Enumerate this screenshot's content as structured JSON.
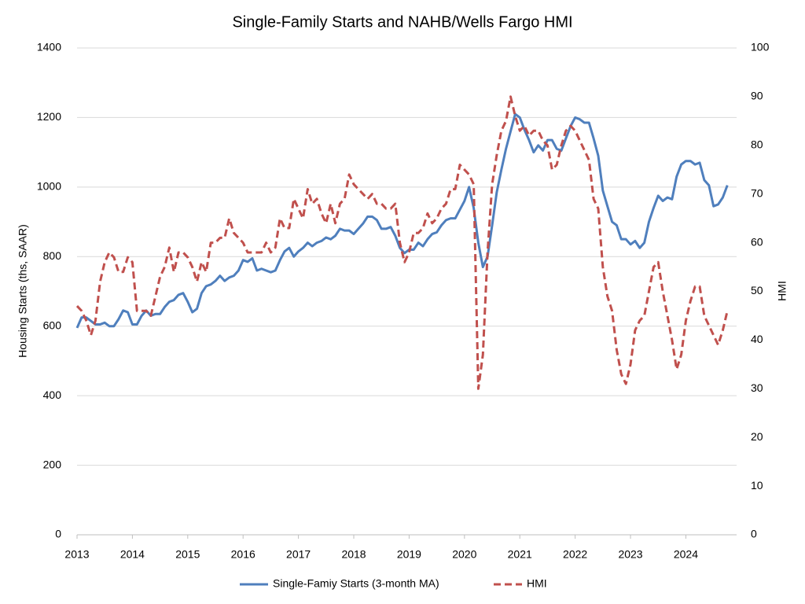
{
  "chart_data": {
    "type": "line",
    "title": "Single-Family Starts and NAHB/Wells Fargo HMI",
    "ylabel": "Housing Starts (ths, SAAR)",
    "y2label": "HMI",
    "x": [
      2013,
      2013.083,
      2013.167,
      2013.25,
      2013.333,
      2013.417,
      2013.5,
      2013.583,
      2013.667,
      2013.75,
      2013.833,
      2013.917,
      2014,
      2014.083,
      2014.167,
      2014.25,
      2014.333,
      2014.417,
      2014.5,
      2014.583,
      2014.667,
      2014.75,
      2014.833,
      2014.917,
      2015,
      2015.083,
      2015.167,
      2015.25,
      2015.333,
      2015.417,
      2015.5,
      2015.583,
      2015.667,
      2015.75,
      2015.833,
      2015.917,
      2016,
      2016.083,
      2016.167,
      2016.25,
      2016.333,
      2016.417,
      2016.5,
      2016.583,
      2016.667,
      2016.75,
      2016.833,
      2016.917,
      2017,
      2017.083,
      2017.167,
      2017.25,
      2017.333,
      2017.417,
      2017.5,
      2017.583,
      2017.667,
      2017.75,
      2017.833,
      2017.917,
      2018,
      2018.083,
      2018.167,
      2018.25,
      2018.333,
      2018.417,
      2018.5,
      2018.583,
      2018.667,
      2018.75,
      2018.833,
      2018.917,
      2019,
      2019.083,
      2019.167,
      2019.25,
      2019.333,
      2019.417,
      2019.5,
      2019.583,
      2019.667,
      2019.75,
      2019.833,
      2019.917,
      2020,
      2020.083,
      2020.167,
      2020.25,
      2020.333,
      2020.417,
      2020.5,
      2020.583,
      2020.667,
      2020.75,
      2020.833,
      2020.917,
      2021,
      2021.083,
      2021.167,
      2021.25,
      2021.333,
      2021.417,
      2021.5,
      2021.583,
      2021.667,
      2021.75,
      2021.833,
      2021.917,
      2022,
      2022.083,
      2022.167,
      2022.25,
      2022.333,
      2022.417,
      2022.5,
      2022.583,
      2022.667,
      2022.75,
      2022.833,
      2022.917,
      2023,
      2023.083,
      2023.167,
      2023.25,
      2023.333,
      2023.417,
      2023.5,
      2023.583,
      2023.667,
      2023.75,
      2023.833,
      2023.917,
      2024,
      2024.083,
      2024.167,
      2024.25,
      2024.333,
      2024.417,
      2024.5,
      2024.583,
      2024.667,
      2024.75
    ],
    "series": [
      {
        "name": "Single-Famiy Starts (3-month MA)",
        "color": "#4f7fbd",
        "dash": "solid",
        "axis": "y",
        "values": [
          595,
          625,
          625,
          615,
          605,
          605,
          610,
          600,
          600,
          620,
          645,
          640,
          605,
          605,
          630,
          645,
          630,
          635,
          635,
          655,
          670,
          675,
          690,
          695,
          670,
          640,
          650,
          695,
          715,
          720,
          730,
          745,
          730,
          740,
          745,
          760,
          790,
          785,
          795,
          760,
          765,
          760,
          755,
          760,
          790,
          815,
          825,
          800,
          815,
          825,
          840,
          830,
          840,
          845,
          855,
          850,
          860,
          880,
          875,
          875,
          865,
          880,
          895,
          915,
          915,
          905,
          880,
          880,
          885,
          860,
          825,
          810,
          820,
          820,
          840,
          830,
          850,
          865,
          870,
          890,
          905,
          910,
          910,
          935,
          960,
          1000,
          940,
          840,
          770,
          800,
          890,
          985,
          1050,
          1110,
          1160,
          1210,
          1200,
          1165,
          1135,
          1100,
          1120,
          1105,
          1135,
          1135,
          1110,
          1105,
          1140,
          1175,
          1200,
          1195,
          1185,
          1185,
          1140,
          1090,
          990,
          945,
          900,
          890,
          850,
          850,
          835,
          845,
          825,
          840,
          900,
          940,
          975,
          960,
          970,
          965,
          1030,
          1065,
          1075,
          1075,
          1065,
          1070,
          1020,
          1005,
          945,
          950,
          970,
          1005
        ]
      },
      {
        "name": "HMI",
        "color": "#c0504d",
        "dash": "dashed",
        "axis": "y2",
        "values": [
          47,
          46,
          44,
          41,
          44,
          52,
          56,
          58,
          57,
          54,
          54,
          57,
          56,
          46,
          46,
          46,
          45,
          49,
          53,
          55,
          59,
          54,
          58,
          58,
          57,
          55,
          52,
          56,
          54,
          60,
          60,
          61,
          61,
          65,
          62,
          61,
          60,
          58,
          58,
          58,
          58,
          60,
          58,
          59,
          65,
          63,
          63,
          69,
          67,
          65,
          71,
          68,
          69,
          66,
          64,
          68,
          64,
          68,
          69,
          74,
          72,
          71,
          70,
          69,
          70,
          68,
          68,
          67,
          67,
          68,
          60,
          56,
          58,
          62,
          62,
          63,
          66,
          64,
          65,
          67,
          68,
          71,
          71,
          76,
          75,
          74,
          72,
          30,
          37,
          58,
          72,
          78,
          83,
          85,
          90,
          86,
          83,
          84,
          82,
          83,
          83,
          81,
          80,
          75,
          76,
          80,
          83,
          84,
          83,
          81,
          79,
          77,
          69,
          67,
          55,
          49,
          46,
          38,
          33,
          31,
          35,
          42,
          44,
          45,
          50,
          55,
          56,
          50,
          45,
          40,
          34,
          37,
          44,
          48,
          51,
          51,
          45,
          43,
          41,
          39,
          42,
          46
        ]
      }
    ],
    "xlim": [
      2013,
      2024.917
    ],
    "xticks": [
      2013,
      2014,
      2015,
      2016,
      2017,
      2018,
      2019,
      2020,
      2021,
      2022,
      2023,
      2024
    ],
    "ylim": [
      0,
      1400
    ],
    "yticks": [
      0,
      200,
      400,
      600,
      800,
      1000,
      1200,
      1400
    ],
    "y2lim": [
      0,
      100
    ],
    "y2ticks": [
      0,
      10,
      20,
      30,
      40,
      50,
      60,
      70,
      80,
      90,
      100
    ],
    "grid": true,
    "legend": "bottom"
  }
}
